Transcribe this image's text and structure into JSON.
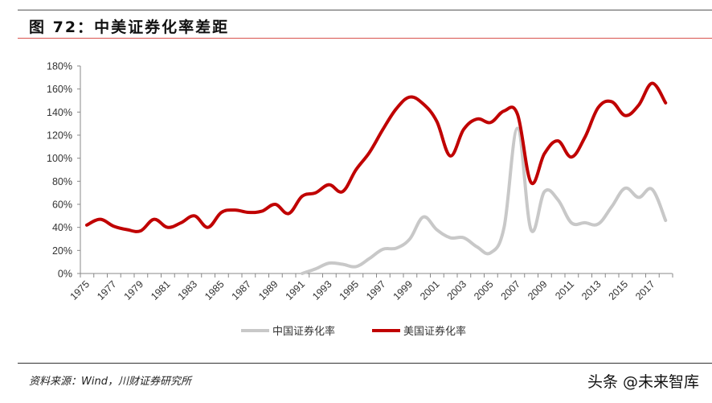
{
  "figure": {
    "label": "图 72：",
    "title": "中美证券化率差距"
  },
  "source_note": "资料来源：Wind，川财证券研究所",
  "watermark": "头条 @未来智库",
  "colors": {
    "us": "#c00000",
    "china": "#c8c8c8",
    "axis": "#888888"
  },
  "chart_data": {
    "type": "line",
    "title": "中美证券化率差距",
    "xlabel": "",
    "ylabel": "",
    "ylim": [
      0,
      180
    ],
    "yticks": [
      "0%",
      "20%",
      "40%",
      "60%",
      "80%",
      "100%",
      "120%",
      "140%",
      "160%",
      "180%"
    ],
    "xtick_labels": [
      "1975",
      "1977",
      "1979",
      "1981",
      "1983",
      "1985",
      "1987",
      "1989",
      "1991",
      "1993",
      "1995",
      "1997",
      "1999",
      "2001",
      "2003",
      "2005",
      "2007",
      "2009",
      "2011",
      "2013",
      "2015",
      "2017"
    ],
    "grid": false,
    "legend_position": "bottom",
    "x": [
      1975,
      1976,
      1977,
      1978,
      1979,
      1980,
      1981,
      1982,
      1983,
      1984,
      1985,
      1986,
      1987,
      1988,
      1989,
      1990,
      1991,
      1992,
      1993,
      1994,
      1995,
      1996,
      1997,
      1998,
      1999,
      2000,
      2001,
      2002,
      2003,
      2004,
      2005,
      2006,
      2007,
      2008,
      2009,
      2010,
      2011,
      2012,
      2013,
      2014,
      2015,
      2016,
      2017,
      2018
    ],
    "series": [
      {
        "name": "中国证券化率",
        "color": "#c8c8c8",
        "x": [
          1991,
          1992,
          1993,
          1994,
          1995,
          1996,
          1997,
          1998,
          1999,
          2000,
          2001,
          2002,
          2003,
          2004,
          2005,
          2006,
          2007,
          2008,
          2009,
          2010,
          2011,
          2012,
          2013,
          2014,
          2015,
          2016,
          2017,
          2018
        ],
        "values": [
          0,
          4,
          9,
          8,
          6,
          13,
          21,
          22,
          30,
          49,
          38,
          31,
          31,
          23,
          18,
          40,
          126,
          38,
          71,
          64,
          44,
          44,
          43,
          58,
          74,
          66,
          73,
          46
        ]
      },
      {
        "name": "美国证券化率",
        "color": "#c00000",
        "x": [
          1975,
          1976,
          1977,
          1978,
          1979,
          1980,
          1981,
          1982,
          1983,
          1984,
          1985,
          1986,
          1987,
          1988,
          1989,
          1990,
          1991,
          1992,
          1993,
          1994,
          1995,
          1996,
          1997,
          1998,
          1999,
          2000,
          2001,
          2002,
          2003,
          2004,
          2005,
          2006,
          2007,
          2008,
          2009,
          2010,
          2011,
          2012,
          2013,
          2014,
          2015,
          2016,
          2017,
          2018
        ],
        "values": [
          42,
          47,
          41,
          38,
          37,
          47,
          40,
          44,
          50,
          40,
          53,
          55,
          53,
          54,
          60,
          52,
          67,
          70,
          77,
          71,
          90,
          105,
          125,
          143,
          153,
          147,
          132,
          102,
          125,
          134,
          131,
          141,
          138,
          79,
          104,
          115,
          101,
          118,
          144,
          149,
          137,
          146,
          165,
          148
        ]
      }
    ]
  }
}
